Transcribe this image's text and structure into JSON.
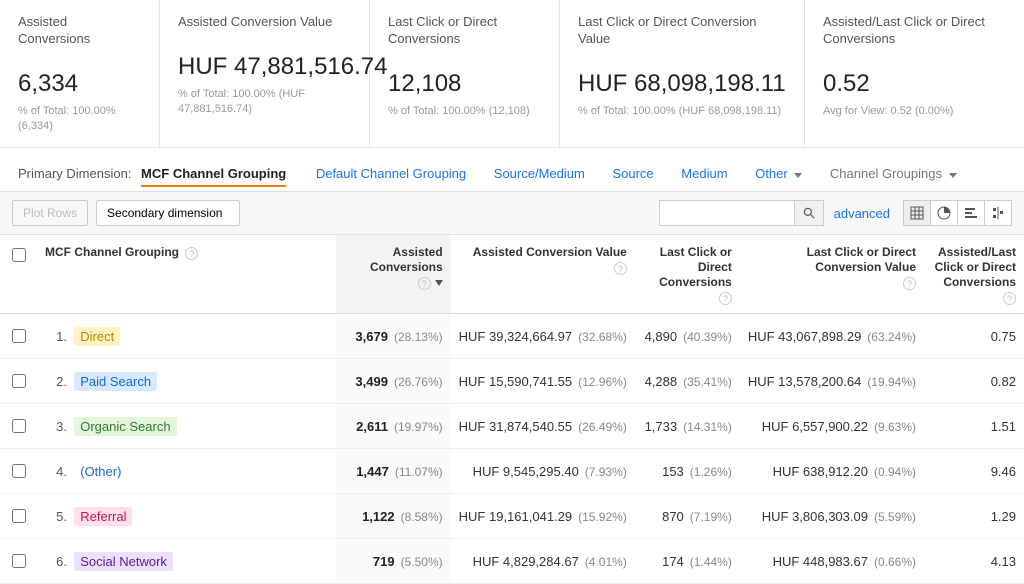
{
  "scorecards": [
    {
      "title": "Assisted Conversions",
      "value": "6,334",
      "sub": "% of Total: 100.00% (6,334)"
    },
    {
      "title": "Assisted Conversion Value",
      "value": "HUF 47,881,516.74",
      "sub": "% of Total: 100.00% (HUF 47,881,516.74)"
    },
    {
      "title": "Last Click or Direct Conversions",
      "value": "12,108",
      "sub": "% of Total: 100.00% (12,108)"
    },
    {
      "title": "Last Click or Direct Conversion Value",
      "value": "HUF 68,098,198.11",
      "sub": "% of Total: 100.00% (HUF 68,098,198.11)"
    },
    {
      "title": "Assisted/Last Click or Direct Conversions",
      "value": "0.52",
      "sub": "Avg for View: 0.52 (0.00%)"
    }
  ],
  "dimbar": {
    "label": "Primary Dimension:",
    "active": "MCF Channel Grouping",
    "links": [
      "Default Channel Grouping",
      "Source/Medium",
      "Source",
      "Medium",
      "Other"
    ],
    "groupings": "Channel Groupings"
  },
  "toolbar": {
    "plotRows": "Plot Rows",
    "secondary": "Secondary dimension",
    "advanced": "advanced"
  },
  "columns": {
    "c1": "MCF Channel Grouping",
    "c2": "Assisted Conversions",
    "c3": "Assisted Conversion Value",
    "c4": "Last Click or Direct Conversions",
    "c5": "Last Click or Direct Conversion Value",
    "c6": "Assisted/Last Click or Direct Conversions"
  },
  "rows": [
    {
      "idx": "1.",
      "name": "Direct",
      "chip": "chip-direct",
      "ac": "3,679",
      "acp": "(28.13%)",
      "acv": "HUF 39,324,664.97",
      "acvp": "(32.68%)",
      "lc": "4,890",
      "lcp": "(40.39%)",
      "lcv": "HUF 43,067,898.29",
      "lcvp": "(63.24%)",
      "ratio": "0.75"
    },
    {
      "idx": "2.",
      "name": "Paid Search",
      "chip": "chip-paid",
      "ac": "3,499",
      "acp": "(26.76%)",
      "acv": "HUF 15,590,741.55",
      "acvp": "(12.96%)",
      "lc": "4,288",
      "lcp": "(35.41%)",
      "lcv": "HUF 13,578,200.64",
      "lcvp": "(19.94%)",
      "ratio": "0.82"
    },
    {
      "idx": "3.",
      "name": "Organic Search",
      "chip": "chip-organic",
      "ac": "2,611",
      "acp": "(19.97%)",
      "acv": "HUF 31,874,540.55",
      "acvp": "(26.49%)",
      "lc": "1,733",
      "lcp": "(14.31%)",
      "lcv": "HUF 6,557,900.22",
      "lcvp": "(9.63%)",
      "ratio": "1.51"
    },
    {
      "idx": "4.",
      "name": "(Other)",
      "chip": "chip-other",
      "ac": "1,447",
      "acp": "(11.07%)",
      "acv": "HUF 9,545,295.40",
      "acvp": "(7.93%)",
      "lc": "153",
      "lcp": "(1.26%)",
      "lcv": "HUF 638,912.20",
      "lcvp": "(0.94%)",
      "ratio": "9.46"
    },
    {
      "idx": "5.",
      "name": "Referral",
      "chip": "chip-referral",
      "ac": "1,122",
      "acp": "(8.58%)",
      "acv": "HUF 19,161,041.29",
      "acvp": "(15.92%)",
      "lc": "870",
      "lcp": "(7.19%)",
      "lcv": "HUF 3,806,303.09",
      "lcvp": "(5.59%)",
      "ratio": "1.29"
    },
    {
      "idx": "6.",
      "name": "Social Network",
      "chip": "chip-social",
      "ac": "719",
      "acp": "(5.50%)",
      "acv": "HUF 4,829,284.67",
      "acvp": "(4.01%)",
      "lc": "174",
      "lcp": "(1.44%)",
      "lcv": "HUF 448,983.67",
      "lcvp": "(0.66%)",
      "ratio": "4.13"
    }
  ],
  "colors": {
    "link": "#1a73e8",
    "accent": "#f57c00"
  }
}
